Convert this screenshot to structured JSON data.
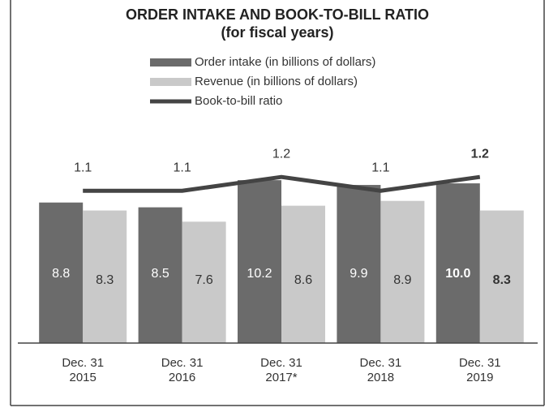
{
  "chart_data": {
    "type": "bar",
    "title": "ORDER INTAKE AND BOOK-TO-BILL RATIO",
    "subtitle": "(for fiscal years)",
    "categories": [
      "Dec. 31\n2015",
      "Dec. 31\n2016",
      "Dec. 31\n2017*",
      "Dec. 31\n2018",
      "Dec. 31\n2019"
    ],
    "series": [
      {
        "name": "Order intake (in billions of dollars)",
        "color": "#6b6b6b",
        "values": [
          8.8,
          8.5,
          10.2,
          9.9,
          10.0
        ],
        "value_labels": [
          "8.8",
          "8.5",
          "10.2",
          "9.9",
          "10.0"
        ]
      },
      {
        "name": "Revenue (in billions of dollars)",
        "color": "#c9c9c9",
        "values": [
          8.3,
          7.6,
          8.6,
          8.9,
          8.3
        ]
      },
      {
        "name": "Book-to-bill ratio",
        "color": "#444444",
        "type": "line",
        "axis": "y2",
        "values": [
          1.1,
          1.1,
          1.2,
          1.1,
          1.2
        ]
      }
    ],
    "ylim": [
      0,
      13
    ],
    "y2lim": [
      0,
      1.5
    ]
  }
}
